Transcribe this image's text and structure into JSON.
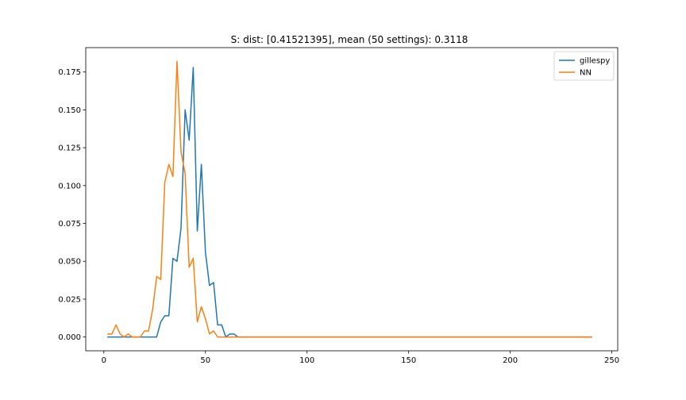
{
  "chart_data": {
    "type": "line",
    "title": "S: dist: [0.41521395], mean (50 settings): 0.3118",
    "xlabel": "",
    "ylabel": "",
    "xlim": [
      -8.9,
      252.9
    ],
    "ylim": [
      -0.0091,
      0.1911
    ],
    "xticks": [
      0,
      50,
      100,
      150,
      200,
      250
    ],
    "yticks": [
      0.0,
      0.025,
      0.05,
      0.075,
      0.1,
      0.125,
      0.15,
      0.175
    ],
    "ytick_labels": [
      "0.000",
      "0.025",
      "0.050",
      "0.075",
      "0.100",
      "0.125",
      "0.150",
      "0.175"
    ],
    "grid": false,
    "legend_position": "top-right",
    "x": [
      2,
      4,
      6,
      8,
      10,
      12,
      14,
      16,
      18,
      20,
      22,
      24,
      26,
      28,
      30,
      32,
      34,
      36,
      38,
      40,
      42,
      44,
      46,
      48,
      50,
      52,
      54,
      56,
      58,
      60,
      62,
      64,
      66,
      68,
      70,
      72,
      74,
      76,
      78,
      80,
      85,
      90,
      95,
      100,
      110,
      120,
      130,
      140,
      150,
      160,
      170,
      180,
      190,
      200,
      210,
      220,
      230,
      240
    ],
    "series": [
      {
        "name": "gillespy",
        "color": "#1f77b4",
        "values": [
          0,
          0,
          0,
          0,
          0,
          0,
          0,
          0,
          0,
          0,
          0,
          0,
          0,
          0.01,
          0.014,
          0.014,
          0.052,
          0.05,
          0.072,
          0.15,
          0.13,
          0.178,
          0.07,
          0.114,
          0.056,
          0.034,
          0.036,
          0.008,
          0.008,
          0,
          0.002,
          0.002,
          0,
          0,
          0,
          0,
          0,
          0,
          0,
          0,
          0,
          0,
          0,
          0,
          0,
          0,
          0,
          0,
          0,
          0,
          0,
          0,
          0,
          0,
          0,
          0,
          0,
          0
        ]
      },
      {
        "name": "NN",
        "color": "#ff7f0e",
        "values": [
          0.002,
          0.002,
          0.008,
          0.002,
          0,
          0.002,
          0,
          0,
          0,
          0.004,
          0.004,
          0.018,
          0.04,
          0.038,
          0.102,
          0.114,
          0.106,
          0.182,
          0.122,
          0.108,
          0.046,
          0.052,
          0.01,
          0.02,
          0.012,
          0.002,
          0.004,
          0,
          0,
          0,
          0,
          0,
          0,
          0,
          0,
          0,
          0,
          0,
          0,
          0,
          0,
          0,
          0,
          0,
          0,
          0,
          0,
          0,
          0,
          0,
          0,
          0,
          0,
          0,
          0,
          0,
          0,
          0
        ]
      }
    ]
  }
}
